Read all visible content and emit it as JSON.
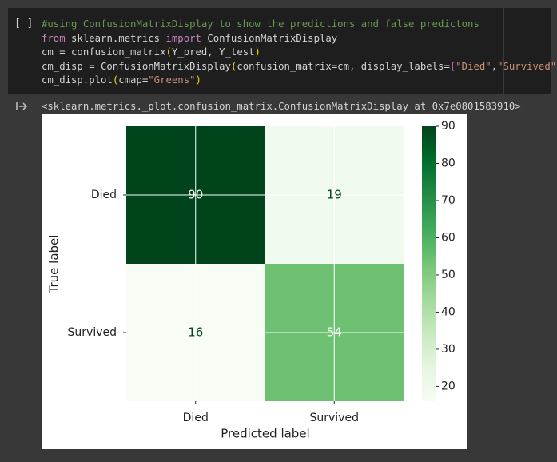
{
  "cell": {
    "bracket": "[ ]",
    "code": [
      [
        {
          "text": "#using ConfusionMatrixDisplay to show the predictions and false predictons",
          "color": "#6a9955"
        }
      ],
      [
        {
          "text": "from",
          "color": "#c586c0"
        },
        {
          "text": " sklearn.metrics ",
          "color": "#d4d4d4"
        },
        {
          "text": "import",
          "color": "#c586c0"
        },
        {
          "text": " ConfusionMatrixDisplay",
          "color": "#d4d4d4"
        }
      ],
      [
        {
          "text": "cm = confusion_matrix",
          "color": "#d4d4d4"
        },
        {
          "text": "(",
          "color": "#ffd700"
        },
        {
          "text": "Y_pred, Y_test",
          "color": "#d4d4d4"
        },
        {
          "text": ")",
          "color": "#ffd700"
        }
      ],
      [
        {
          "text": "cm_disp = ConfusionMatrixDisplay",
          "color": "#d4d4d4"
        },
        {
          "text": "(",
          "color": "#ffd700"
        },
        {
          "text": "confusion_matrix=cm, display_labels=",
          "color": "#d4d4d4"
        },
        {
          "text": "[",
          "color": "#da70d6"
        },
        {
          "text": "\"Died\"",
          "color": "#ce9178"
        },
        {
          "text": ",",
          "color": "#d4d4d4"
        },
        {
          "text": "\"Survived\"",
          "color": "#ce9178"
        },
        {
          "text": "]",
          "color": "#da70d6"
        },
        {
          "text": ")",
          "color": "#ffd700"
        }
      ],
      [
        {
          "text": "cm_disp.plot",
          "color": "#d4d4d4"
        },
        {
          "text": "(",
          "color": "#ffd700"
        },
        {
          "text": "cmap=",
          "color": "#d4d4d4"
        },
        {
          "text": "\"Greens\"",
          "color": "#ce9178"
        },
        {
          "text": ")",
          "color": "#ffd700"
        }
      ]
    ]
  },
  "output": {
    "repr": "<sklearn.metrics._plot.confusion_matrix.ConfusionMatrixDisplay at 0x7e0801583910>"
  },
  "chart_data": {
    "type": "heatmap",
    "x_label": "Predicted label",
    "y_label": "True label",
    "x_categories": [
      "Died",
      "Survived"
    ],
    "y_categories": [
      "Died",
      "Survived"
    ],
    "values": [
      [
        90,
        19
      ],
      [
        16,
        54
      ]
    ],
    "colormap": "Greens",
    "colorbar_lim": [
      16,
      90
    ],
    "colorbar_ticks": [
      20,
      30,
      40,
      50,
      60,
      70,
      80,
      90
    ]
  }
}
